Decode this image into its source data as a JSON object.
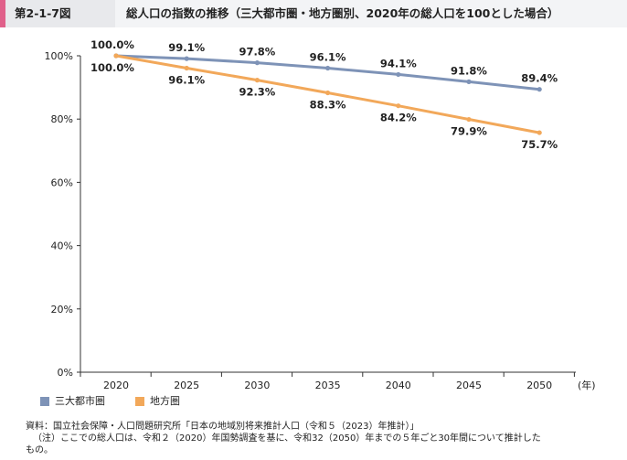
{
  "header": {
    "figure_label": "第2-1-7図",
    "title": "総人口の指数の推移（三大都市圏・地方圏別、2020年の総人口を100とした場合）"
  },
  "chart_data": {
    "type": "line",
    "x": [
      2020,
      2025,
      2030,
      2035,
      2040,
      2045,
      2050
    ],
    "x_tick_labels": [
      "2020",
      "2025",
      "2030",
      "2035",
      "2040",
      "2045",
      "2050"
    ],
    "xlabel": "(年)",
    "ylim": [
      0,
      100
    ],
    "y_ticks": [
      0,
      20,
      40,
      60,
      80,
      100
    ],
    "y_tick_labels": [
      "0%",
      "20%",
      "40%",
      "60%",
      "80%",
      "100%"
    ],
    "series": [
      {
        "name": "三大都市圏",
        "color": "#7e93b7",
        "values": [
          100.0,
          99.1,
          97.8,
          96.1,
          94.1,
          91.8,
          89.4
        ],
        "labels": [
          "100.0%",
          "99.1%",
          "97.8%",
          "96.1%",
          "94.1%",
          "91.8%",
          "89.4%"
        ],
        "label_position": "above"
      },
      {
        "name": "地方圏",
        "color": "#f2a85a",
        "values": [
          100.0,
          96.1,
          92.3,
          88.3,
          84.2,
          79.9,
          75.7
        ],
        "labels": [
          "100.0%",
          "96.1%",
          "92.3%",
          "88.3%",
          "84.2%",
          "79.9%",
          "75.7%"
        ],
        "label_position": "below"
      }
    ],
    "legend": [
      "三大都市圏",
      "地方圏"
    ],
    "legend_placement": "bottom-left"
  },
  "notes": {
    "source": "資料：国立社会保障・人口問題研究所「日本の地域別将来推計人口（令和５（2023）年推計）」",
    "note_line1": "（注）ここでの総人口は、令和２（2020）年国勢調査を基に、令和32（2050）年までの５年ごと30年間について推計した",
    "note_line2": "もの。"
  }
}
